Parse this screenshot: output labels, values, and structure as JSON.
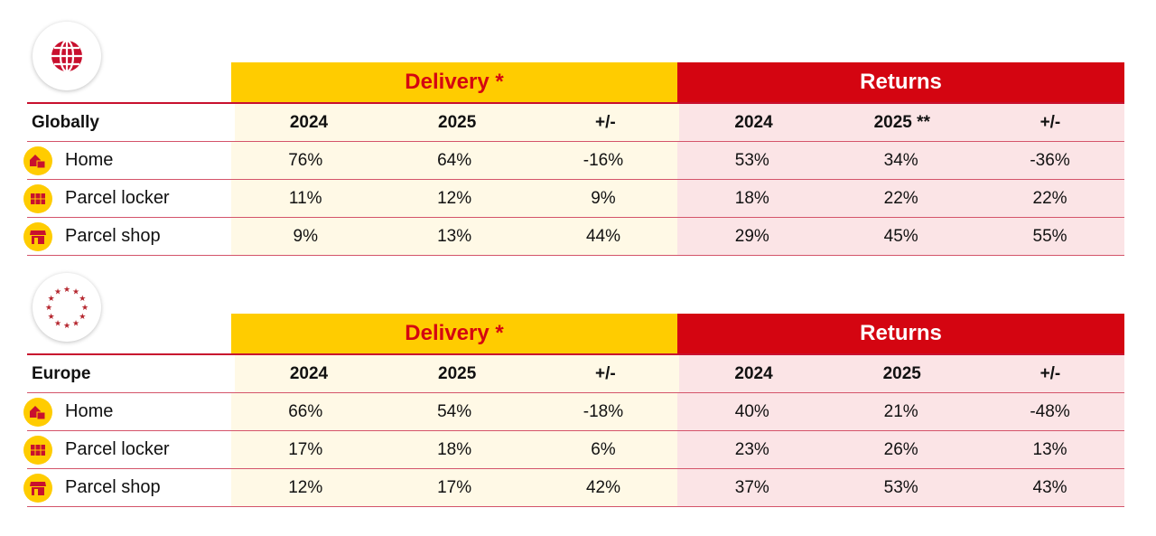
{
  "colors": {
    "delivery": "#FFCC00",
    "returns": "#D40511",
    "delivery_bg": "#FFF9E6",
    "returns_bg": "#FBE4E6"
  },
  "tables": [
    {
      "emblem": "globe-icon",
      "delivery_label": "Delivery *",
      "returns_label": "Returns",
      "region": "Globally",
      "columns": [
        "2024",
        "2025",
        "+/-",
        "2024",
        "2025 **",
        "+/-"
      ],
      "rows": [
        {
          "icon": "home-parcel-icon",
          "label": "Home",
          "values": [
            "76%",
            "64%",
            "-16%",
            "53%",
            "34%",
            "-36%"
          ]
        },
        {
          "icon": "parcel-locker-icon",
          "label": "Parcel locker",
          "values": [
            "11%",
            "12%",
            "9%",
            "18%",
            "22%",
            "22%"
          ]
        },
        {
          "icon": "parcel-shop-icon",
          "label": "Parcel shop",
          "values": [
            "9%",
            "13%",
            "44%",
            "29%",
            "45%",
            "55%"
          ]
        }
      ]
    },
    {
      "emblem": "eu-stars-icon",
      "delivery_label": "Delivery *",
      "returns_label": "Returns",
      "region": "Europe",
      "columns": [
        "2024",
        "2025",
        "+/-",
        "2024",
        "2025",
        "+/-"
      ],
      "rows": [
        {
          "icon": "home-parcel-icon",
          "label": "Home",
          "values": [
            "66%",
            "54%",
            "-18%",
            "40%",
            "21%",
            "-48%"
          ]
        },
        {
          "icon": "parcel-locker-icon",
          "label": "Parcel locker",
          "values": [
            "17%",
            "18%",
            "6%",
            "23%",
            "26%",
            "13%"
          ]
        },
        {
          "icon": "parcel-shop-icon",
          "label": "Parcel shop",
          "values": [
            "12%",
            "17%",
            "42%",
            "37%",
            "53%",
            "43%"
          ]
        }
      ]
    }
  ]
}
